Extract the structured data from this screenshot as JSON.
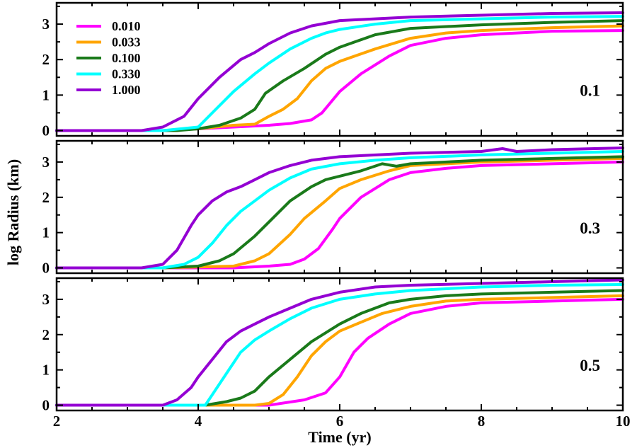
{
  "chart_data": {
    "type": "line",
    "xlabel": "Time (yr)",
    "ylabel": "log Radius (km)",
    "xlim": [
      2,
      10
    ],
    "ylim": [
      -0.15,
      3.6
    ],
    "x_ticks": [
      "2",
      "4",
      "6",
      "8",
      "10"
    ],
    "y_ticks": [
      "0",
      "1",
      "2",
      "3"
    ],
    "legend": {
      "placement": "top-left",
      "entries": [
        "0.010",
        "0.033",
        "0.100",
        "0.330",
        "1.000"
      ]
    },
    "colors": {
      "0.010": "#ff00ff",
      "0.033": "#ffa500",
      "0.100": "#1a7a1a",
      "0.330": "#00ffff",
      "1.000": "#9400d3"
    },
    "panels": [
      {
        "label": "0.1",
        "series": [
          {
            "name": "0.010",
            "x": [
              2,
              3.5,
              4.5,
              5.0,
              5.3,
              5.6,
              5.75,
              6.0,
              6.3,
              6.7,
              7.0,
              7.5,
              8.0,
              9.0,
              10.0
            ],
            "y": [
              0,
              0,
              0.1,
              0.15,
              0.2,
              0.3,
              0.5,
              1.1,
              1.6,
              2.1,
              2.4,
              2.6,
              2.7,
              2.8,
              2.82
            ]
          },
          {
            "name": "0.033",
            "x": [
              2,
              3.5,
              4.0,
              4.5,
              4.8,
              5.0,
              5.2,
              5.4,
              5.6,
              5.8,
              6.0,
              6.5,
              7.0,
              7.5,
              8.0,
              9.0,
              10.0
            ],
            "y": [
              0,
              0,
              0.05,
              0.15,
              0.18,
              0.4,
              0.6,
              0.9,
              1.4,
              1.75,
              1.95,
              2.3,
              2.6,
              2.75,
              2.82,
              2.9,
              2.95
            ]
          },
          {
            "name": "0.100",
            "x": [
              2,
              3.7,
              4.0,
              4.3,
              4.6,
              4.8,
              4.95,
              5.2,
              5.5,
              5.8,
              6.0,
              6.5,
              7.0,
              8.0,
              9.0,
              10.0
            ],
            "y": [
              0,
              0,
              0.05,
              0.15,
              0.35,
              0.6,
              1.05,
              1.4,
              1.75,
              2.15,
              2.35,
              2.7,
              2.88,
              2.98,
              3.05,
              3.1
            ]
          },
          {
            "name": "0.330",
            "x": [
              2,
              3.5,
              4.0,
              4.2,
              4.5,
              4.8,
              5.0,
              5.3,
              5.6,
              5.8,
              6.0,
              6.5,
              7.0,
              8.0,
              9.0,
              10.0
            ],
            "y": [
              0,
              0,
              0.1,
              0.5,
              1.1,
              1.6,
              1.9,
              2.3,
              2.6,
              2.75,
              2.85,
              3.0,
              3.1,
              3.15,
              3.2,
              3.22
            ]
          },
          {
            "name": "1.000",
            "x": [
              2,
              3.2,
              3.5,
              3.8,
              4.0,
              4.3,
              4.6,
              4.8,
              5.0,
              5.3,
              5.6,
              6.0,
              6.5,
              7.0,
              8.0,
              9.0,
              10.0
            ],
            "y": [
              0,
              0,
              0.1,
              0.4,
              0.9,
              1.5,
              2.0,
              2.2,
              2.45,
              2.75,
              2.95,
              3.1,
              3.15,
              3.2,
              3.25,
              3.3,
              3.32
            ]
          }
        ]
      },
      {
        "label": "0.3",
        "series": [
          {
            "name": "0.010",
            "x": [
              2,
              4.5,
              5.0,
              5.3,
              5.5,
              5.7,
              5.9,
              6.0,
              6.3,
              6.7,
              7.0,
              7.5,
              8.0,
              9.0,
              10.0
            ],
            "y": [
              0,
              0,
              0.05,
              0.1,
              0.25,
              0.55,
              1.1,
              1.4,
              2.0,
              2.5,
              2.7,
              2.82,
              2.9,
              2.95,
              3.0
            ]
          },
          {
            "name": "0.033",
            "x": [
              2,
              3.5,
              4.5,
              4.8,
              5.0,
              5.3,
              5.5,
              5.8,
              6.0,
              6.3,
              6.7,
              7.0,
              8.0,
              9.0,
              10.0
            ],
            "y": [
              0,
              0,
              0.05,
              0.2,
              0.4,
              0.95,
              1.4,
              1.9,
              2.25,
              2.5,
              2.75,
              2.9,
              3.0,
              3.05,
              3.1
            ]
          },
          {
            "name": "0.100",
            "x": [
              2,
              3.5,
              4.0,
              4.3,
              4.5,
              4.8,
              5.0,
              5.3,
              5.6,
              5.8,
              6.0,
              6.3,
              6.6,
              6.8,
              7.0,
              8.0,
              9.0,
              10.0
            ],
            "y": [
              0,
              0,
              0.05,
              0.2,
              0.4,
              0.9,
              1.3,
              1.9,
              2.3,
              2.5,
              2.6,
              2.75,
              2.95,
              2.88,
              2.95,
              3.05,
              3.1,
              3.15
            ]
          },
          {
            "name": "0.330",
            "x": [
              2,
              3.5,
              3.8,
              4.0,
              4.2,
              4.4,
              4.6,
              4.8,
              5.0,
              5.3,
              5.6,
              6.0,
              6.5,
              7.0,
              8.0,
              9.0,
              10.0
            ],
            "y": [
              0,
              0,
              0.1,
              0.3,
              0.7,
              1.2,
              1.6,
              1.9,
              2.2,
              2.55,
              2.8,
              2.95,
              3.05,
              3.12,
              3.2,
              3.25,
              3.3
            ]
          },
          {
            "name": "1.000",
            "x": [
              2,
              3.2,
              3.5,
              3.7,
              3.9,
              4.0,
              4.2,
              4.4,
              4.6,
              4.8,
              5.0,
              5.3,
              5.6,
              6.0,
              7.0,
              8.0,
              8.3,
              8.5,
              9.0,
              10.0
            ],
            "y": [
              0,
              0,
              0.1,
              0.5,
              1.2,
              1.5,
              1.9,
              2.15,
              2.3,
              2.5,
              2.7,
              2.9,
              3.05,
              3.15,
              3.25,
              3.3,
              3.38,
              3.3,
              3.35,
              3.4
            ]
          }
        ]
      },
      {
        "label": "0.5",
        "series": [
          {
            "name": "0.010",
            "x": [
              2,
              5.0,
              5.5,
              5.8,
              6.0,
              6.2,
              6.4,
              6.7,
              7.0,
              7.5,
              8.0,
              9.0,
              10.0
            ],
            "y": [
              0,
              0,
              0.15,
              0.35,
              0.8,
              1.5,
              1.9,
              2.3,
              2.6,
              2.8,
              2.9,
              2.95,
              3.0
            ]
          },
          {
            "name": "0.033",
            "x": [
              2,
              4.8,
              5.0,
              5.2,
              5.4,
              5.6,
              5.8,
              6.0,
              6.3,
              6.6,
              7.0,
              7.5,
              8.0,
              9.0,
              10.0
            ],
            "y": [
              0,
              0,
              0.05,
              0.3,
              0.8,
              1.4,
              1.8,
              2.1,
              2.35,
              2.6,
              2.8,
              2.95,
              3.0,
              3.05,
              3.1
            ]
          },
          {
            "name": "0.100",
            "x": [
              2,
              4.1,
              4.4,
              4.6,
              4.8,
              5.0,
              5.3,
              5.6,
              6.0,
              6.3,
              6.7,
              7.0,
              7.5,
              8.0,
              9.0,
              10.0
            ],
            "y": [
              0,
              0,
              0.1,
              0.2,
              0.4,
              0.8,
              1.3,
              1.8,
              2.3,
              2.6,
              2.9,
              3.0,
              3.1,
              3.15,
              3.2,
              3.25
            ]
          },
          {
            "name": "0.330",
            "x": [
              2,
              4.1,
              4.2,
              4.4,
              4.6,
              4.8,
              5.0,
              5.3,
              5.6,
              6.0,
              6.5,
              7.0,
              8.0,
              9.0,
              10.0
            ],
            "y": [
              0,
              0,
              0.3,
              0.9,
              1.5,
              1.85,
              2.1,
              2.45,
              2.75,
              3.0,
              3.15,
              3.25,
              3.35,
              3.4,
              3.42
            ]
          },
          {
            "name": "1.000",
            "x": [
              2,
              3.5,
              3.7,
              3.9,
              4.0,
              4.2,
              4.4,
              4.6,
              4.8,
              5.0,
              5.3,
              5.6,
              6.0,
              6.5,
              7.0,
              8.0,
              9.0,
              10.0
            ],
            "y": [
              0,
              0,
              0.15,
              0.5,
              0.8,
              1.3,
              1.8,
              2.1,
              2.3,
              2.5,
              2.75,
              3.0,
              3.2,
              3.35,
              3.4,
              3.45,
              3.5,
              3.55
            ]
          }
        ]
      }
    ]
  }
}
